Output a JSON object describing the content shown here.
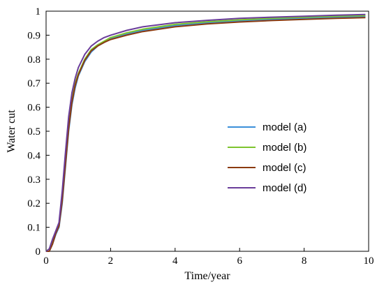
{
  "chart_data": {
    "type": "line",
    "xlabel": "Time/year",
    "ylabel": "Water cut",
    "xlim": [
      0,
      10
    ],
    "ylim": [
      0,
      1
    ],
    "xticks": [
      0,
      2,
      4,
      6,
      8,
      10
    ],
    "yticks": [
      0,
      0.1,
      0.2,
      0.3,
      0.4,
      0.5,
      0.6,
      0.7,
      0.8,
      0.9,
      1
    ],
    "grid": false,
    "legend_position": "center-right",
    "series": [
      {
        "name": "model (a)",
        "color": "#3b8fd9",
        "x": [
          0,
          0.1,
          0.2,
          0.3,
          0.4,
          0.5,
          0.6,
          0.7,
          0.8,
          0.9,
          1.0,
          1.2,
          1.4,
          1.6,
          1.8,
          2.0,
          2.5,
          3.0,
          4.0,
          5.0,
          6.0,
          7.0,
          8.0,
          9.0,
          9.9
        ],
        "y": [
          0,
          0.0,
          0.03,
          0.07,
          0.1,
          0.2,
          0.35,
          0.5,
          0.61,
          0.68,
          0.73,
          0.79,
          0.83,
          0.855,
          0.87,
          0.885,
          0.905,
          0.92,
          0.94,
          0.952,
          0.96,
          0.966,
          0.971,
          0.975,
          0.978
        ]
      },
      {
        "name": "model (b)",
        "color": "#7dc42e",
        "x": [
          0,
          0.1,
          0.2,
          0.3,
          0.4,
          0.5,
          0.6,
          0.7,
          0.8,
          0.9,
          1.0,
          1.2,
          1.4,
          1.6,
          1.8,
          2.0,
          2.5,
          3.0,
          4.0,
          5.0,
          6.0,
          7.0,
          8.0,
          9.0,
          9.9
        ],
        "y": [
          0,
          0.01,
          0.04,
          0.08,
          0.11,
          0.22,
          0.37,
          0.52,
          0.63,
          0.7,
          0.74,
          0.8,
          0.84,
          0.86,
          0.875,
          0.89,
          0.91,
          0.925,
          0.945,
          0.956,
          0.964,
          0.97,
          0.975,
          0.979,
          0.982
        ]
      },
      {
        "name": "model (c)",
        "color": "#8b3a0f",
        "x": [
          0,
          0.1,
          0.2,
          0.3,
          0.4,
          0.5,
          0.6,
          0.7,
          0.8,
          0.9,
          1.0,
          1.2,
          1.4,
          1.6,
          1.8,
          2.0,
          2.5,
          3.0,
          4.0,
          5.0,
          6.0,
          7.0,
          8.0,
          9.0,
          9.9
        ],
        "y": [
          0,
          0.0,
          0.03,
          0.075,
          0.105,
          0.21,
          0.36,
          0.51,
          0.62,
          0.69,
          0.735,
          0.795,
          0.835,
          0.855,
          0.87,
          0.882,
          0.9,
          0.915,
          0.935,
          0.947,
          0.955,
          0.961,
          0.966,
          0.97,
          0.973
        ]
      },
      {
        "name": "model (d)",
        "color": "#6a3d9a",
        "x": [
          0,
          0.1,
          0.2,
          0.3,
          0.4,
          0.5,
          0.6,
          0.7,
          0.8,
          0.9,
          1.0,
          1.2,
          1.4,
          1.6,
          1.8,
          2.0,
          2.5,
          3.0,
          4.0,
          5.0,
          6.0,
          7.0,
          8.0,
          9.0,
          9.9
        ],
        "y": [
          0,
          0.01,
          0.05,
          0.085,
          0.12,
          0.25,
          0.41,
          0.56,
          0.66,
          0.72,
          0.765,
          0.82,
          0.855,
          0.875,
          0.89,
          0.9,
          0.92,
          0.935,
          0.952,
          0.962,
          0.97,
          0.975,
          0.979,
          0.983,
          0.986
        ]
      }
    ]
  }
}
